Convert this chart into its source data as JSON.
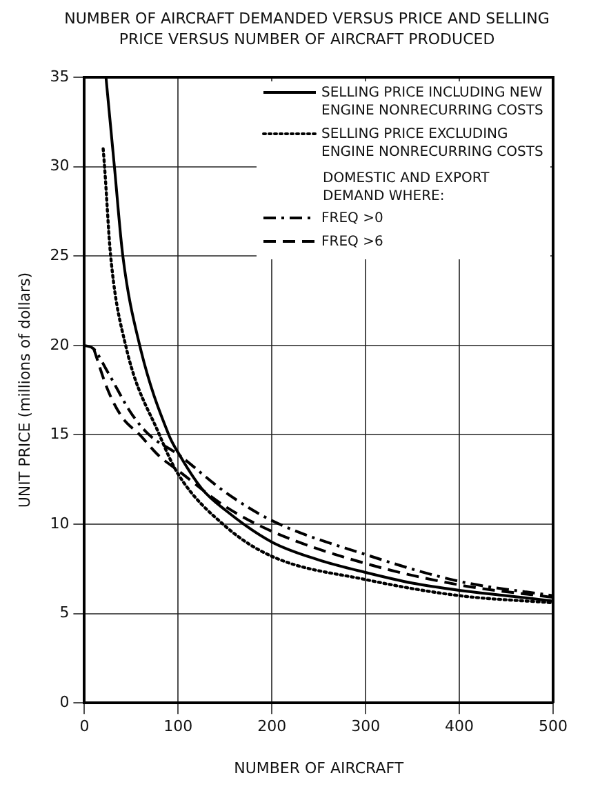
{
  "chart_data": {
    "type": "line",
    "title": "NUMBER OF AIRCRAFT DEMANDED VERSUS PRICE AND SELLING PRICE VERSUS NUMBER OF AIRCRAFT PRODUCED",
    "xlabel": "NUMBER OF AIRCRAFT",
    "ylabel": "UNIT PRICE (millions of dollars)",
    "legend_title": "DOMESTIC AND EXPORT DEMAND WHERE:",
    "xlim": [
      0,
      500
    ],
    "ylim": [
      0,
      35
    ],
    "xticks": [
      0,
      100,
      200,
      300,
      400,
      500
    ],
    "yticks": [
      0,
      5,
      10,
      15,
      20,
      25,
      30,
      35
    ],
    "grid": true,
    "legend": "top right",
    "marker": "none",
    "series": [
      {
        "name": "SELLING PRICE INCLUDING NEW ENGINE NONRECURRING COSTS",
        "color": "#000000",
        "line_style": "solid",
        "x": [
          23,
          32,
          41,
          59,
          90,
          100,
          125,
          150,
          200,
          250,
          300,
          350,
          400,
          450,
          500
        ],
        "values": [
          35,
          30,
          25,
          20,
          15,
          14,
          12,
          10.8,
          9,
          8,
          7.3,
          6.7,
          6.3,
          6,
          5.7
        ]
      },
      {
        "name": "SELLING PRICE EXCLUDING ENGINE NONRECURRING COSTS",
        "color": "#000000",
        "line_style": "dotted",
        "x": [
          20,
          21.5,
          28,
          44,
          80,
          100,
          150,
          200,
          300,
          400,
          500
        ],
        "values": [
          31,
          30,
          25,
          20,
          15,
          12.8,
          9.9,
          8.2,
          6.9,
          6,
          5.6
        ]
      },
      {
        "name": "FREQ >0",
        "color": "#000000",
        "line_style": "dashdot",
        "x": [
          0,
          10,
          25,
          50,
          69,
          100,
          150,
          200,
          300,
          400,
          500
        ],
        "values": [
          20,
          19.8,
          18.5,
          16.2,
          15,
          13.9,
          11.8,
          10.2,
          8.3,
          6.8,
          6
        ]
      },
      {
        "name": "FREQ >6",
        "color": "#000000",
        "line_style": "dashed",
        "x": [
          10,
          25,
          40,
          59,
          80,
          100,
          150,
          200,
          300,
          400,
          500
        ],
        "values": [
          19.8,
          17.5,
          16,
          15,
          13.8,
          13,
          11,
          9.6,
          7.8,
          6.6,
          5.9
        ]
      }
    ]
  }
}
